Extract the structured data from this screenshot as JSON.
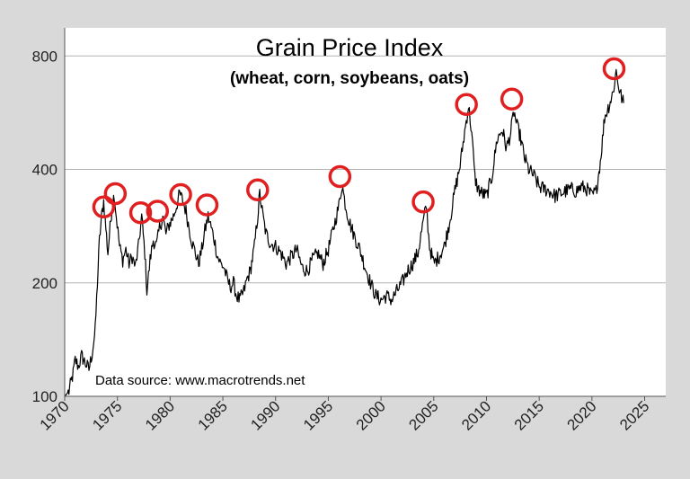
{
  "chart_data": {
    "type": "line",
    "title": "Grain Price Index",
    "subtitle": "(wheat, corn, soybeans, oats)",
    "annotation": "Data source: www.macrotrends.net",
    "xlabel": "",
    "ylabel": "",
    "yscale": "log",
    "xlim": [
      1970,
      2027
    ],
    "ylim": [
      100,
      950
    ],
    "x_ticks": [
      1970,
      1975,
      1980,
      1985,
      1990,
      1995,
      2000,
      2005,
      2010,
      2015,
      2020,
      2025
    ],
    "x_tick_labels": [
      "1970",
      "1975",
      "1980",
      "1985",
      "1990",
      "1995",
      "2000",
      "2005",
      "2010",
      "2015",
      "2020",
      "2025"
    ],
    "y_ticks": [
      100,
      200,
      400,
      800
    ],
    "y_tick_labels": [
      "100",
      "200",
      "400",
      "800"
    ],
    "grid": "horizontal",
    "colors": {
      "line": "#000000",
      "highlight": "#e02020",
      "grid": "#b3b3b3",
      "plot_bg": "#ffffff",
      "page_bg": "#d9d9d9"
    },
    "series": [
      {
        "name": "Grain Price Index",
        "points": [
          [
            1970.0,
            100
          ],
          [
            1970.4,
            103
          ],
          [
            1970.8,
            115
          ],
          [
            1971.0,
            125
          ],
          [
            1971.3,
            120
          ],
          [
            1971.6,
            128
          ],
          [
            1972.0,
            122
          ],
          [
            1972.3,
            118
          ],
          [
            1972.6,
            130
          ],
          [
            1972.9,
            150
          ],
          [
            1973.1,
            200
          ],
          [
            1973.3,
            260
          ],
          [
            1973.5,
            300
          ],
          [
            1973.7,
            330
          ],
          [
            1973.9,
            280
          ],
          [
            1974.1,
            240
          ],
          [
            1974.3,
            280
          ],
          [
            1974.5,
            320
          ],
          [
            1974.7,
            345
          ],
          [
            1974.9,
            300
          ],
          [
            1975.2,
            250
          ],
          [
            1975.5,
            230
          ],
          [
            1975.8,
            245
          ],
          [
            1976.1,
            225
          ],
          [
            1976.4,
            235
          ],
          [
            1976.7,
            220
          ],
          [
            1977.0,
            250
          ],
          [
            1977.3,
            300
          ],
          [
            1977.6,
            240
          ],
          [
            1977.8,
            190
          ],
          [
            1978.1,
            230
          ],
          [
            1978.4,
            260
          ],
          [
            1978.7,
            250
          ],
          [
            1979.0,
            280
          ],
          [
            1979.3,
            300
          ],
          [
            1979.6,
            270
          ],
          [
            1979.9,
            285
          ],
          [
            1980.3,
            300
          ],
          [
            1980.6,
            320
          ],
          [
            1980.9,
            345
          ],
          [
            1981.2,
            330
          ],
          [
            1981.5,
            310
          ],
          [
            1981.8,
            280
          ],
          [
            1982.1,
            255
          ],
          [
            1982.4,
            240
          ],
          [
            1982.7,
            225
          ],
          [
            1983.0,
            245
          ],
          [
            1983.3,
            275
          ],
          [
            1983.6,
            300
          ],
          [
            1983.9,
            280
          ],
          [
            1984.2,
            260
          ],
          [
            1984.5,
            235
          ],
          [
            1984.8,
            225
          ],
          [
            1985.1,
            220
          ],
          [
            1985.4,
            205
          ],
          [
            1985.7,
            195
          ],
          [
            1986.0,
            200
          ],
          [
            1986.3,
            185
          ],
          [
            1986.6,
            180
          ],
          [
            1987.0,
            190
          ],
          [
            1987.3,
            205
          ],
          [
            1987.6,
            215
          ],
          [
            1988.0,
            250
          ],
          [
            1988.3,
            300
          ],
          [
            1988.5,
            345
          ],
          [
            1988.8,
            300
          ],
          [
            1989.1,
            270
          ],
          [
            1989.5,
            255
          ],
          [
            1990.0,
            250
          ],
          [
            1990.5,
            240
          ],
          [
            1991.0,
            225
          ],
          [
            1991.5,
            235
          ],
          [
            1992.0,
            245
          ],
          [
            1992.5,
            220
          ],
          [
            1993.0,
            215
          ],
          [
            1993.5,
            230
          ],
          [
            1994.0,
            240
          ],
          [
            1994.5,
            225
          ],
          [
            1995.0,
            245
          ],
          [
            1995.5,
            280
          ],
          [
            1996.0,
            320
          ],
          [
            1996.3,
            365
          ],
          [
            1996.6,
            325
          ],
          [
            1997.0,
            290
          ],
          [
            1997.5,
            265
          ],
          [
            1998.0,
            245
          ],
          [
            1998.5,
            220
          ],
          [
            1999.0,
            200
          ],
          [
            1999.5,
            185
          ],
          [
            2000.0,
            180
          ],
          [
            2000.5,
            185
          ],
          [
            2001.0,
            180
          ],
          [
            2001.5,
            190
          ],
          [
            2002.0,
            200
          ],
          [
            2002.5,
            215
          ],
          [
            2003.0,
            225
          ],
          [
            2003.5,
            240
          ],
          [
            2004.0,
            290
          ],
          [
            2004.3,
            320
          ],
          [
            2004.6,
            250
          ],
          [
            2005.0,
            225
          ],
          [
            2005.5,
            235
          ],
          [
            2006.0,
            250
          ],
          [
            2006.5,
            290
          ],
          [
            2007.0,
            350
          ],
          [
            2007.5,
            410
          ],
          [
            2008.0,
            520
          ],
          [
            2008.3,
            590
          ],
          [
            2008.6,
            500
          ],
          [
            2008.9,
            380
          ],
          [
            2009.2,
            355
          ],
          [
            2009.6,
            345
          ],
          [
            2010.0,
            340
          ],
          [
            2010.5,
            380
          ],
          [
            2011.0,
            480
          ],
          [
            2011.5,
            510
          ],
          [
            2011.9,
            455
          ],
          [
            2012.3,
            500
          ],
          [
            2012.6,
            570
          ],
          [
            2012.9,
            520
          ],
          [
            2013.2,
            490
          ],
          [
            2013.6,
            430
          ],
          [
            2014.0,
            400
          ],
          [
            2014.5,
            385
          ],
          [
            2015.0,
            360
          ],
          [
            2015.5,
            355
          ],
          [
            2016.0,
            350
          ],
          [
            2016.5,
            340
          ],
          [
            2017.0,
            345
          ],
          [
            2017.5,
            350
          ],
          [
            2018.0,
            355
          ],
          [
            2018.5,
            350
          ],
          [
            2019.0,
            360
          ],
          [
            2019.5,
            355
          ],
          [
            2020.0,
            340
          ],
          [
            2020.4,
            350
          ],
          [
            2020.8,
            420
          ],
          [
            2021.2,
            550
          ],
          [
            2021.6,
            590
          ],
          [
            2022.0,
            640
          ],
          [
            2022.3,
            730
          ],
          [
            2022.6,
            650
          ],
          [
            2022.9,
            610
          ],
          [
            2023.0,
            600
          ]
        ]
      }
    ],
    "highlighted_peaks": [
      {
        "x": 1973.7,
        "y": 318
      },
      {
        "x": 1974.8,
        "y": 345
      },
      {
        "x": 1977.2,
        "y": 307
      },
      {
        "x": 1978.8,
        "y": 310
      },
      {
        "x": 1981.0,
        "y": 343
      },
      {
        "x": 1983.5,
        "y": 322
      },
      {
        "x": 1988.3,
        "y": 353
      },
      {
        "x": 1996.1,
        "y": 383
      },
      {
        "x": 2004.0,
        "y": 328
      },
      {
        "x": 2008.1,
        "y": 595
      },
      {
        "x": 2012.4,
        "y": 615
      },
      {
        "x": 2022.1,
        "y": 740
      }
    ]
  }
}
